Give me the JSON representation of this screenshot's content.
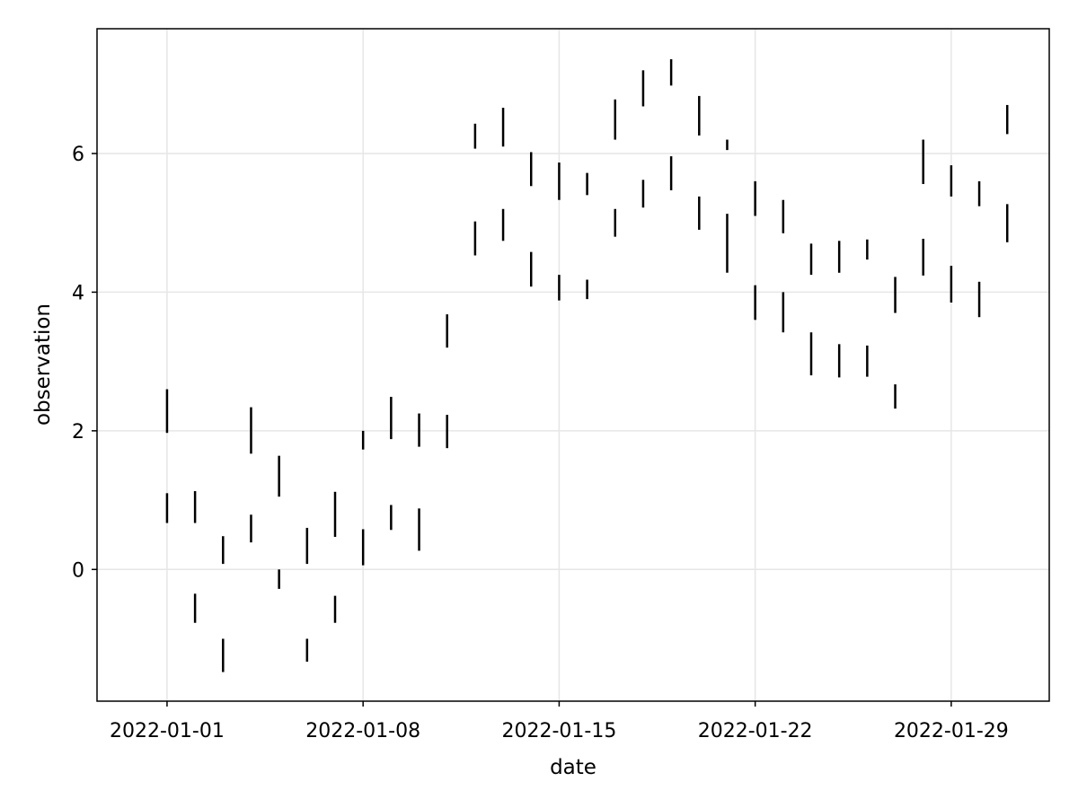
{
  "chart_data": {
    "type": "errorbar",
    "xlabel": "date",
    "ylabel": "observation",
    "x_axis": {
      "kind": "date",
      "range": [
        "2021-12-29T12:00",
        "2022-02-01T12:00"
      ],
      "ticks": [
        "2022-01-01",
        "2022-01-08",
        "2022-01-15",
        "2022-01-22",
        "2022-01-29"
      ]
    },
    "y_axis": {
      "range": [
        -1.9,
        7.8
      ],
      "ticks": [
        0,
        2,
        4,
        6
      ]
    },
    "grid": true,
    "color": "#000000",
    "series": [
      {
        "segments": [
          {
            "x": "2022-01-01",
            "low": 1.97,
            "high": 2.6
          },
          {
            "x": "2022-01-02",
            "low": 0.67,
            "high": 1.13
          },
          {
            "x": "2022-01-03",
            "low": 0.08,
            "high": 0.48
          },
          {
            "x": "2022-01-04",
            "low": 0.39,
            "high": 0.79
          },
          {
            "x": "2022-01-05",
            "low": 1.05,
            "high": 1.64
          },
          {
            "x": "2022-01-06",
            "low": 0.08,
            "high": 0.6
          },
          {
            "x": "2022-01-07",
            "low": 0.47,
            "high": 1.12
          },
          {
            "x": "2022-01-08",
            "low": 0.06,
            "high": 0.58
          },
          {
            "x": "2022-01-09",
            "low": 0.57,
            "high": 0.93
          },
          {
            "x": "2022-01-10",
            "low": 0.27,
            "high": 0.88
          },
          {
            "x": "2022-01-11",
            "low": 3.2,
            "high": 3.68
          },
          {
            "x": "2022-01-12",
            "low": 6.07,
            "high": 6.43
          },
          {
            "x": "2022-01-13",
            "low": 6.1,
            "high": 6.66
          },
          {
            "x": "2022-01-14",
            "low": 5.53,
            "high": 6.02
          },
          {
            "x": "2022-01-15",
            "low": 5.33,
            "high": 5.87
          },
          {
            "x": "2022-01-16",
            "low": 5.4,
            "high": 5.72
          },
          {
            "x": "2022-01-17",
            "low": 6.2,
            "high": 6.78
          },
          {
            "x": "2022-01-18",
            "low": 6.68,
            "high": 7.2
          },
          {
            "x": "2022-01-19",
            "low": 6.98,
            "high": 7.36
          },
          {
            "x": "2022-01-20",
            "low": 6.26,
            "high": 6.83
          },
          {
            "x": "2022-01-21",
            "low": 6.05,
            "high": 6.2
          },
          {
            "x": "2022-01-22",
            "low": 5.1,
            "high": 5.6
          },
          {
            "x": "2022-01-23",
            "low": 4.85,
            "high": 5.33
          },
          {
            "x": "2022-01-24",
            "low": 4.25,
            "high": 4.7
          },
          {
            "x": "2022-01-25",
            "low": 4.28,
            "high": 4.74
          },
          {
            "x": "2022-01-26",
            "low": 4.47,
            "high": 4.76
          },
          {
            "x": "2022-01-27",
            "low": 3.7,
            "high": 4.22
          },
          {
            "x": "2022-01-28",
            "low": 5.56,
            "high": 6.2
          },
          {
            "x": "2022-01-29",
            "low": 5.38,
            "high": 5.83
          },
          {
            "x": "2022-01-30",
            "low": 5.24,
            "high": 5.6
          },
          {
            "x": "2022-01-31",
            "low": 6.28,
            "high": 6.7
          }
        ]
      },
      {
        "segments": [
          {
            "x": "2022-01-01",
            "low": 0.67,
            "high": 1.1
          },
          {
            "x": "2022-01-02",
            "low": -0.77,
            "high": -0.35
          },
          {
            "x": "2022-01-03",
            "low": -1.48,
            "high": -1.0
          },
          {
            "x": "2022-01-04",
            "low": 1.67,
            "high": 2.34
          },
          {
            "x": "2022-01-05",
            "low": -0.28,
            "high": 0.0
          },
          {
            "x": "2022-01-06",
            "low": -1.33,
            "high": -1.0
          },
          {
            "x": "2022-01-07",
            "low": -0.77,
            "high": -0.38
          },
          {
            "x": "2022-01-08",
            "low": 1.73,
            "high": 2.0
          },
          {
            "x": "2022-01-09",
            "low": 1.88,
            "high": 2.49
          },
          {
            "x": "2022-01-10",
            "low": 1.77,
            "high": 2.25
          },
          {
            "x": "2022-01-11",
            "low": 1.75,
            "high": 2.23
          },
          {
            "x": "2022-01-12",
            "low": 4.53,
            "high": 5.02
          },
          {
            "x": "2022-01-13",
            "low": 4.74,
            "high": 5.2
          },
          {
            "x": "2022-01-14",
            "low": 4.08,
            "high": 4.58
          },
          {
            "x": "2022-01-15",
            "low": 3.88,
            "high": 4.25
          },
          {
            "x": "2022-01-16",
            "low": 3.9,
            "high": 4.18
          },
          {
            "x": "2022-01-17",
            "low": 4.8,
            "high": 5.2
          },
          {
            "x": "2022-01-18",
            "low": 5.22,
            "high": 5.62
          },
          {
            "x": "2022-01-19",
            "low": 5.47,
            "high": 5.96
          },
          {
            "x": "2022-01-20",
            "low": 4.9,
            "high": 5.38
          },
          {
            "x": "2022-01-21",
            "low": 4.28,
            "high": 5.13
          },
          {
            "x": "2022-01-22",
            "low": 3.6,
            "high": 4.1
          },
          {
            "x": "2022-01-23",
            "low": 3.42,
            "high": 4.0
          },
          {
            "x": "2022-01-24",
            "low": 2.8,
            "high": 3.42
          },
          {
            "x": "2022-01-25",
            "low": 2.77,
            "high": 3.25
          },
          {
            "x": "2022-01-26",
            "low": 2.78,
            "high": 3.23
          },
          {
            "x": "2022-01-27",
            "low": 2.32,
            "high": 2.67
          },
          {
            "x": "2022-01-28",
            "low": 4.24,
            "high": 4.77
          },
          {
            "x": "2022-01-29",
            "low": 3.85,
            "high": 4.38
          },
          {
            "x": "2022-01-30",
            "low": 3.64,
            "high": 4.15
          },
          {
            "x": "2022-01-31",
            "low": 4.72,
            "high": 5.27
          }
        ]
      }
    ]
  }
}
